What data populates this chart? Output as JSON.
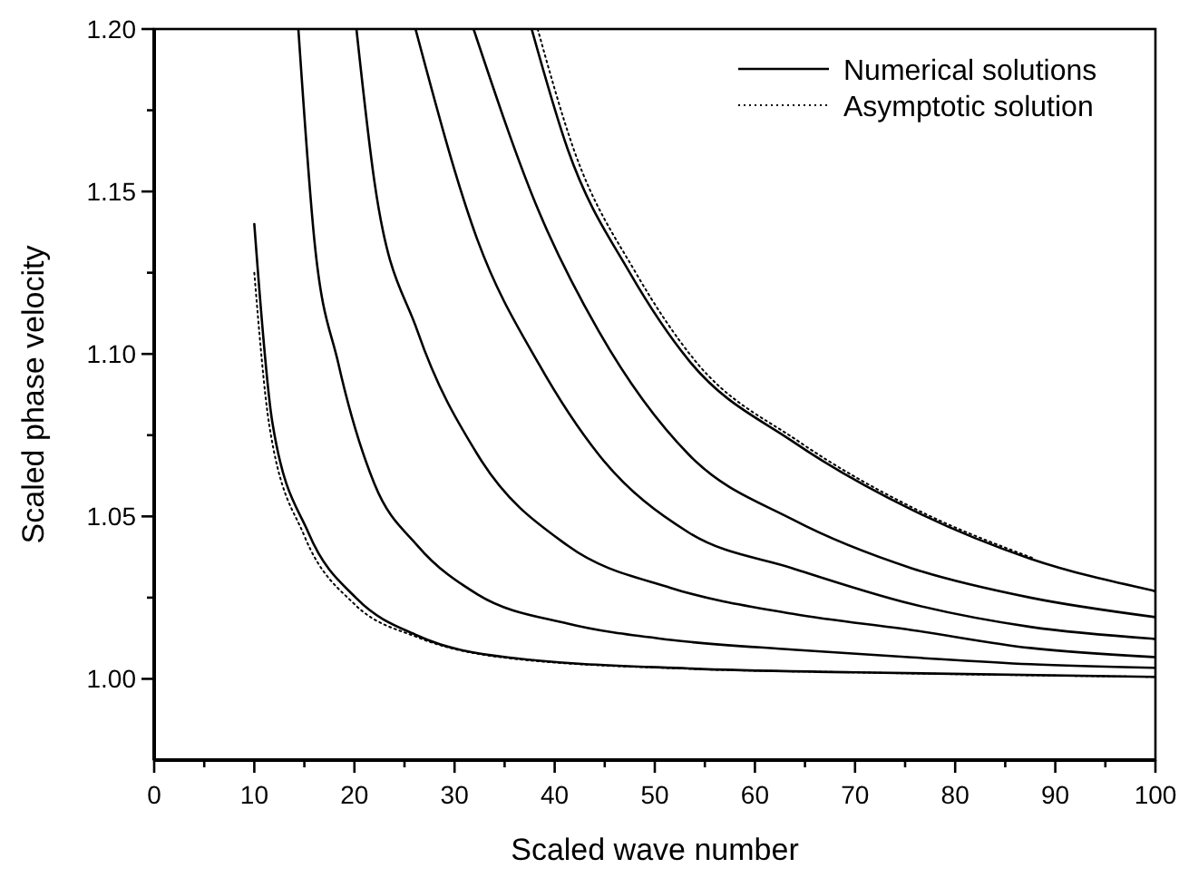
{
  "chart_data": {
    "type": "line",
    "xlabel": "Scaled wave number",
    "ylabel": "Scaled phase velocity",
    "xlim": [
      0,
      100
    ],
    "ylim": [
      0.975,
      1.2
    ],
    "xticks": [
      0,
      {
        "value": 5,
        "label": null
      },
      10,
      {
        "value": 15,
        "label": null
      },
      20,
      {
        "value": 25,
        "label": null
      },
      30,
      {
        "value": 35,
        "label": null
      },
      40,
      {
        "value": 45,
        "label": null
      },
      50,
      {
        "value": 55,
        "label": null
      },
      60,
      {
        "value": 65,
        "label": null
      },
      70,
      {
        "value": 75,
        "label": null
      },
      80,
      {
        "value": 85,
        "label": null
      },
      90,
      {
        "value": 95,
        "label": null
      },
      100
    ],
    "yticks": [
      {
        "value": 1,
        "label": "1.00"
      },
      {
        "value": 1.025,
        "label": null
      },
      {
        "value": 1.05,
        "label": "1.05"
      },
      {
        "value": 1.075,
        "label": null
      },
      {
        "value": 1.1,
        "label": "1.10"
      },
      {
        "value": 1.125,
        "label": null
      },
      {
        "value": 1.15,
        "label": "1.15"
      },
      {
        "value": 1.175,
        "label": null
      },
      {
        "value": 1.2,
        "label": "1.20"
      }
    ],
    "legend": "top right",
    "marker": "none",
    "grid": false,
    "series": [
      {
        "name": "Numerical solutions",
        "color": "#000000",
        "line_style": "solid",
        "x": [
          10,
          11.8,
          15.4,
          20.3,
          26.3,
          35.3,
          53.4,
          70,
          100
        ],
        "values": [
          1.14,
          1.079,
          1.045,
          1.0245,
          1.0133,
          1.0066,
          1.0032,
          1.002,
          1.0006
        ]
      },
      {
        "color": "#000000",
        "line_style": "solid",
        "x": [
          14.4,
          16,
          18.4,
          22,
          26.3,
          32.3,
          41.3,
          51.6,
          63.8,
          75.7,
          87.5,
          100
        ],
        "values": [
          1.2,
          1.135,
          1.097,
          1.06,
          1.041,
          1.026,
          1.017,
          1.012,
          1.009,
          1.0066,
          1.0045,
          1.0034
        ]
      },
      {
        "color": "#000000",
        "line_style": "solid",
        "x": [
          20.2,
          22,
          26.3,
          32.3,
          41.3,
          51.6,
          63.8,
          75.7,
          87.5,
          100
        ],
        "values": [
          1.2,
          1.153,
          1.107,
          1.069,
          1.041,
          1.028,
          1.02,
          1.015,
          1.0095,
          1.0067
        ]
      },
      {
        "color": "#000000",
        "line_style": "solid",
        "x": [
          26.1,
          32.3,
          38.4,
          44.4,
          53.4,
          63.8,
          75.7,
          87.5,
          100
        ],
        "values": [
          1.2,
          1.135,
          1.097,
          1.069,
          1.045,
          1.034,
          1.023,
          1.016,
          1.0123
        ]
      },
      {
        "color": "#000000",
        "line_style": "solid",
        "x": [
          31.9,
          38.4,
          44.4,
          53.4,
          63.8,
          75.7,
          87.5,
          100
        ],
        "values": [
          1.2,
          1.144,
          1.107,
          1.069,
          1.049,
          1.034,
          1.025,
          1.019
        ]
      },
      {
        "color": "#000000",
        "line_style": "solid",
        "x": [
          37.7,
          41.3,
          47.5,
          53.4,
          63.8,
          75.7,
          87.5,
          100
        ],
        "values": [
          1.2,
          1.163,
          1.125,
          1.098,
          1.073,
          1.052,
          1.037,
          1.027
        ]
      },
      {
        "name": "Asymptotic solution",
        "color": "#000000",
        "line_style": "dotted",
        "x": [
          10,
          11.5,
          15,
          20,
          26.3,
          35.3,
          53.4,
          70,
          100
        ],
        "values": [
          1.125,
          1.078,
          1.044,
          1.023,
          1.0128,
          1.0064,
          1.0031,
          1.002,
          1.0006
        ]
      },
      {
        "color": "#000000",
        "line_style": "dotted",
        "x": [
          38.3,
          41.9,
          48.1,
          54,
          64.4,
          76.2,
          87.9
        ],
        "values": [
          1.2,
          1.163,
          1.125,
          1.098,
          1.073,
          1.052,
          1.037
        ]
      }
    ]
  }
}
